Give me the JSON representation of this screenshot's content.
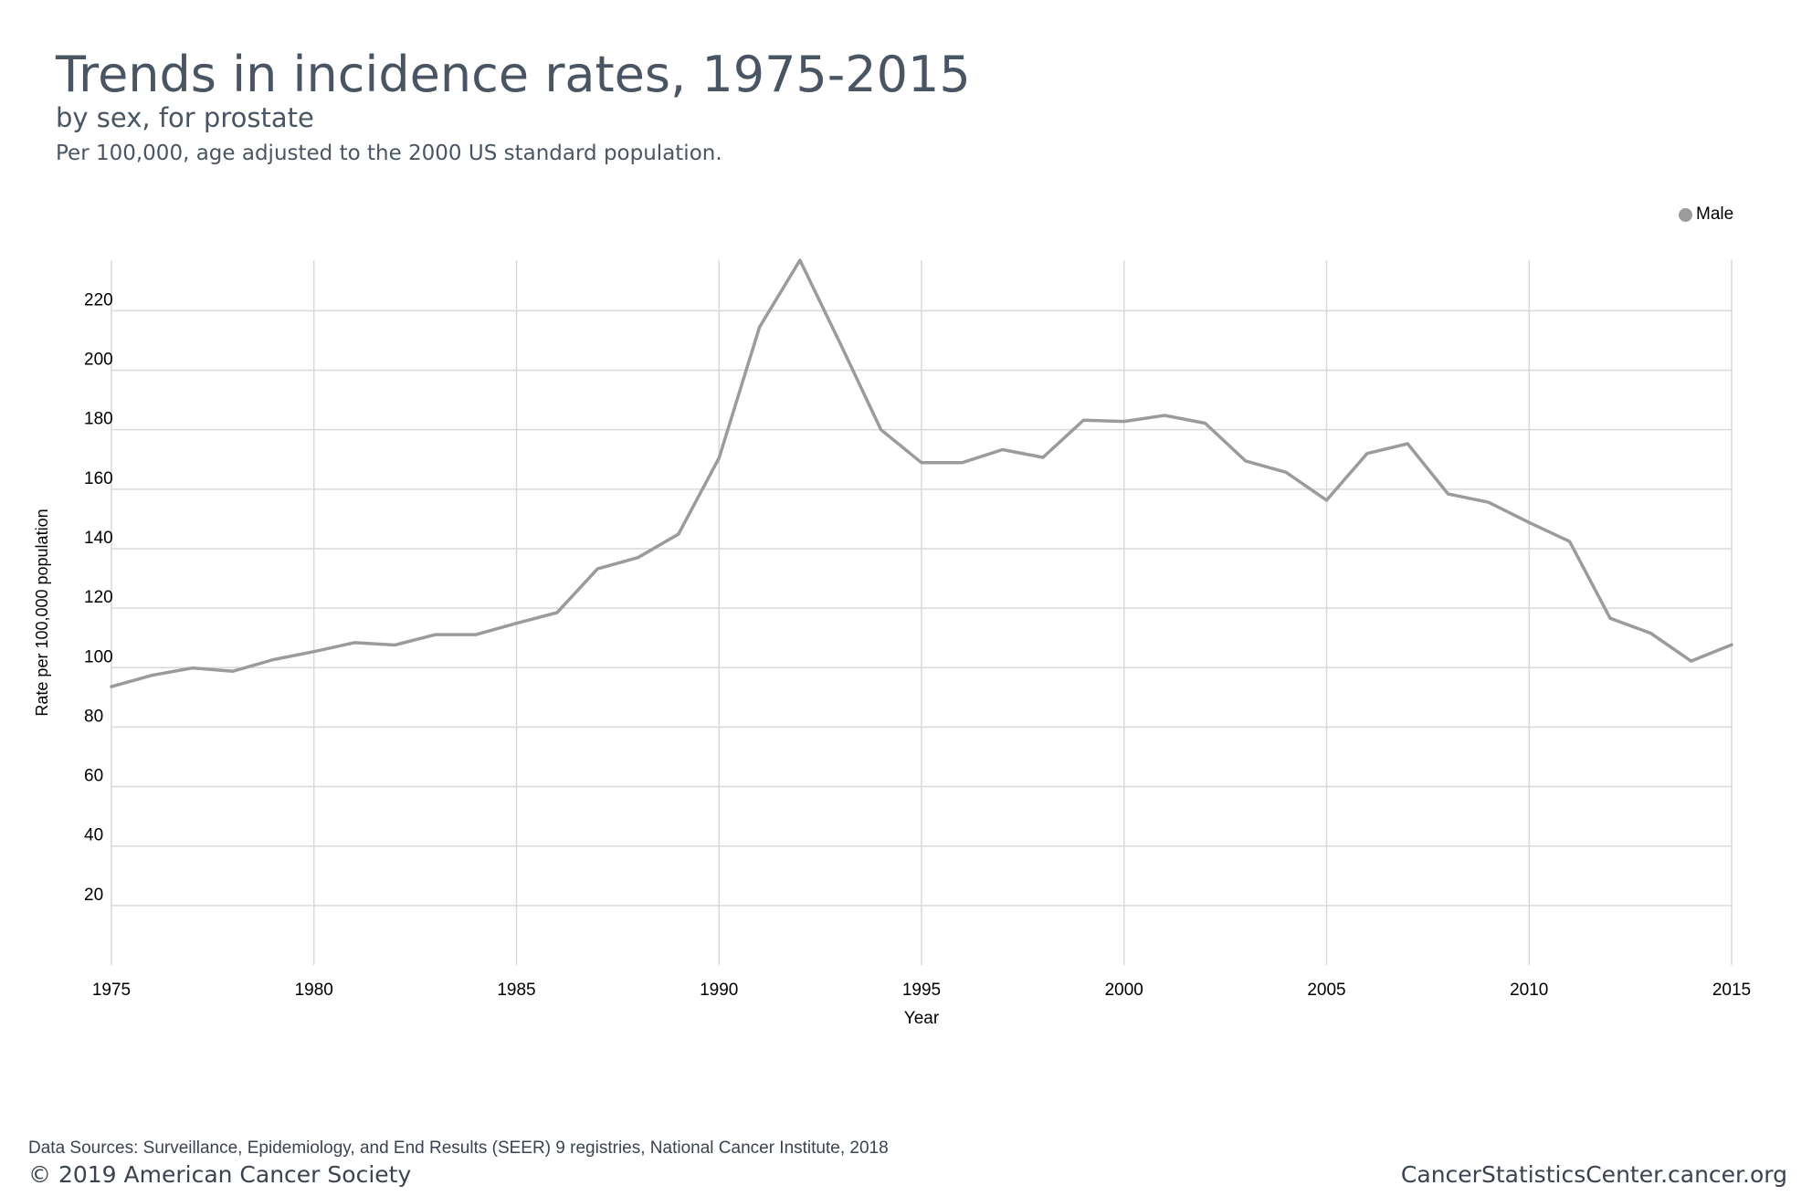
{
  "header": {
    "title": "Trends in incidence rates, 1975-2015",
    "subtitle": "by sex, for prostate",
    "note": "Per 100,000, age adjusted to the 2000 US standard population."
  },
  "footer": {
    "sources": "Data Sources: Surveillance, Epidemiology, and End Results (SEER) 9 registries, National Cancer Institute, 2018",
    "copyright": "© 2019 American Cancer Society",
    "site": "CancerStatisticsCenter.cancer.org"
  },
  "colors": {
    "series_male": "#9b9b9b",
    "grid": "#d9d9d9",
    "text": "#4a5563"
  },
  "chart_data": {
    "type": "line",
    "xlabel": "Year",
    "ylabel": "Rate per 100,000 population",
    "xlim": [
      1975,
      2015
    ],
    "ylim": [
      0,
      237
    ],
    "x_ticks": [
      1975,
      1980,
      1985,
      1990,
      1995,
      2000,
      2005,
      2010,
      2015
    ],
    "y_ticks": [
      20,
      40,
      60,
      80,
      100,
      120,
      140,
      160,
      180,
      200,
      220
    ],
    "grid": true,
    "legend": "top-right",
    "x": [
      1975,
      1976,
      1977,
      1978,
      1979,
      1980,
      1981,
      1982,
      1983,
      1984,
      1985,
      1986,
      1987,
      1988,
      1989,
      1990,
      1991,
      1992,
      1993,
      1994,
      1995,
      1996,
      1997,
      1998,
      1999,
      2000,
      2001,
      2002,
      2003,
      2004,
      2005,
      2006,
      2007,
      2008,
      2009,
      2010,
      2011,
      2012,
      2013,
      2014,
      2015
    ],
    "series": [
      {
        "name": "Male",
        "values": [
          93.6,
          97.4,
          99.9,
          98.8,
          102.7,
          105.4,
          108.4,
          107.6,
          111.1,
          111.1,
          114.9,
          118.5,
          133.2,
          137.0,
          144.9,
          170.5,
          214.5,
          237.0,
          208.8,
          180.0,
          168.9,
          168.9,
          173.3,
          170.7,
          183.2,
          182.8,
          184.8,
          182.2,
          169.5,
          165.7,
          156.3,
          172.0,
          175.3,
          158.4,
          155.6,
          148.8,
          142.4,
          116.6,
          111.6,
          102.2,
          107.7
        ]
      }
    ]
  }
}
